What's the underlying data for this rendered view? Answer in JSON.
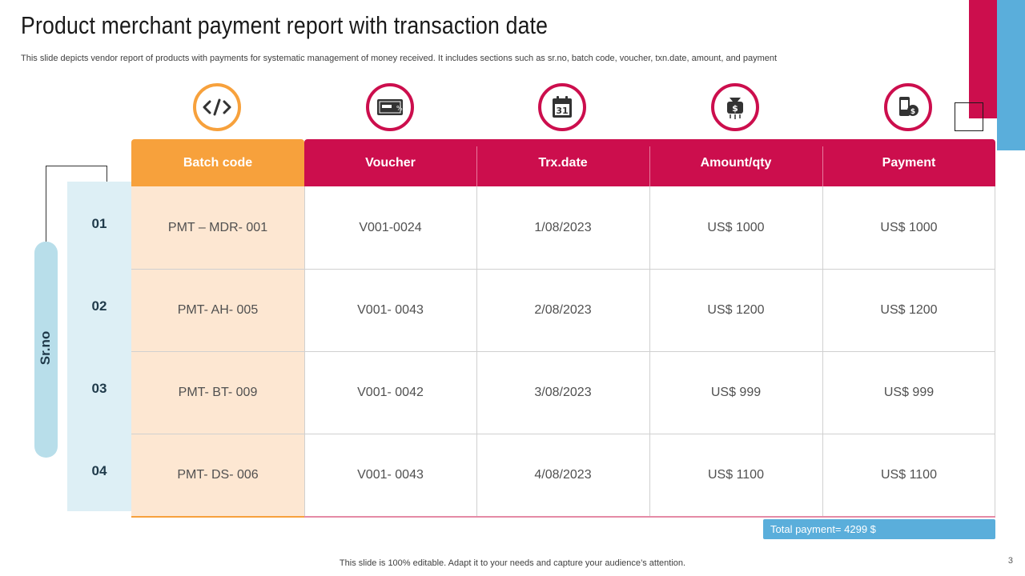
{
  "title": "Product merchant payment report with transaction date",
  "subtitle": "This slide depicts vendor report of products with payments for systematic management of money received. It includes sections such as sr.no, batch code, voucher, txn.date,  amount, and payment",
  "colors": {
    "crimson": "#cc0e4d",
    "orange": "#f7a13c",
    "blue": "#5aaedb",
    "light_blue": "#b8deea",
    "peach": "#fde7d2"
  },
  "icons": [
    "code-icon",
    "voucher-icon",
    "calendar-icon",
    "money-bag-icon",
    "mobile-payment-icon"
  ],
  "calendar_day": "31",
  "srno_label": "Sr.no",
  "table": {
    "headers": [
      "Batch code",
      "Voucher",
      "Trx.date",
      "Amount/qty",
      "Payment"
    ],
    "rows": [
      {
        "sr": "01",
        "batch": "PMT – MDR- 001",
        "voucher": "V001-0024",
        "date": "1/08/2023",
        "amount": "US$ 1000",
        "payment": "US$ 1000"
      },
      {
        "sr": "02",
        "batch": "PMT- AH- 005",
        "voucher": "V001- 0043",
        "date": "2/08/2023",
        "amount": "US$ 1200",
        "payment": "US$ 1200"
      },
      {
        "sr": "03",
        "batch": "PMT- BT- 009",
        "voucher": "V001- 0042",
        "date": "3/08/2023",
        "amount": "US$ 999",
        "payment": "US$ 999"
      },
      {
        "sr": "04",
        "batch": "PMT- DS- 006",
        "voucher": "V001- 0043",
        "date": "4/08/2023",
        "amount": "US$ 1100",
        "payment": "US$ 1100"
      }
    ]
  },
  "total_payment": "Total payment= 4299 $",
  "footer": "This slide is 100% editable. Adapt it to your needs and capture your audience’s attention.",
  "page_number": "3"
}
